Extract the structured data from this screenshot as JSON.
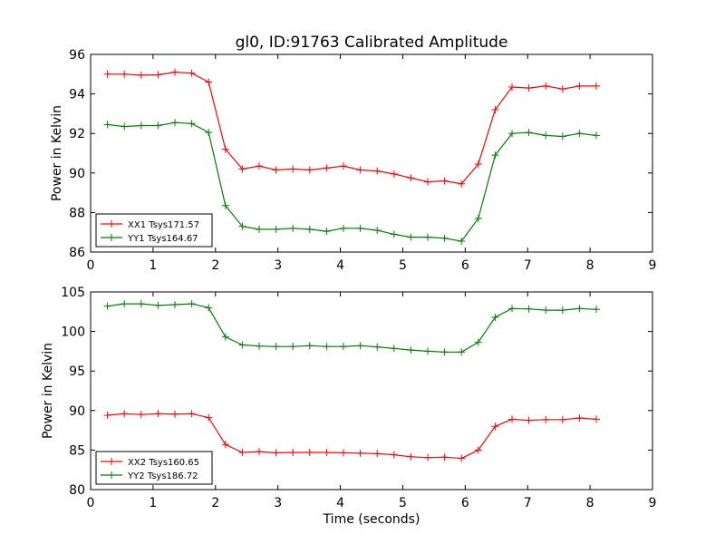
{
  "chart_data": [
    {
      "type": "line",
      "title": "gl0, ID:91763 Calibrated Amplitude",
      "xlabel": "",
      "ylabel": "Power in Kelvin",
      "xlim": [
        0,
        9
      ],
      "ylim": [
        86,
        96
      ],
      "xticks": [
        "0",
        "1",
        "2",
        "3",
        "4",
        "5",
        "6",
        "7",
        "8",
        "9"
      ],
      "yticks": [
        "86",
        "88",
        "90",
        "92",
        "94",
        "96"
      ],
      "legend_position": "lower-left",
      "x": [
        0.27,
        0.54,
        0.81,
        1.08,
        1.35,
        1.62,
        1.89,
        2.16,
        2.43,
        2.7,
        2.97,
        3.24,
        3.51,
        3.78,
        4.05,
        4.32,
        4.59,
        4.86,
        5.13,
        5.4,
        5.67,
        5.94,
        6.21,
        6.48,
        6.75,
        7.02,
        7.29,
        7.56,
        7.83,
        8.1
      ],
      "series": [
        {
          "name": "XX1 Tsys171.57",
          "color": "#ff0000",
          "values": [
            95.0,
            95.0,
            94.95,
            94.97,
            95.1,
            95.05,
            94.6,
            91.2,
            90.2,
            90.35,
            90.15,
            90.2,
            90.15,
            90.25,
            90.35,
            90.15,
            90.1,
            89.95,
            89.75,
            89.55,
            89.6,
            89.45,
            90.45,
            93.2,
            94.35,
            94.3,
            94.4,
            94.25,
            94.4,
            94.4
          ]
        },
        {
          "name": "YY1 Tsys164.67",
          "color": "#008000",
          "values": [
            92.45,
            92.35,
            92.4,
            92.4,
            92.55,
            92.5,
            92.05,
            88.35,
            87.3,
            87.15,
            87.15,
            87.2,
            87.15,
            87.05,
            87.2,
            87.2,
            87.1,
            86.9,
            86.75,
            86.75,
            86.7,
            86.55,
            87.7,
            90.9,
            92.0,
            92.05,
            91.9,
            91.85,
            92.0,
            91.9
          ]
        }
      ]
    },
    {
      "type": "line",
      "title": "",
      "xlabel": "Time (seconds)",
      "ylabel": "Power in Kelvin",
      "xlim": [
        0,
        9
      ],
      "ylim": [
        80,
        105
      ],
      "xticks": [
        "0",
        "1",
        "2",
        "3",
        "4",
        "5",
        "6",
        "7",
        "8",
        "9"
      ],
      "yticks": [
        "80",
        "85",
        "90",
        "95",
        "100",
        "105"
      ],
      "legend_position": "lower-left",
      "x": [
        0.27,
        0.54,
        0.81,
        1.08,
        1.35,
        1.62,
        1.89,
        2.16,
        2.43,
        2.7,
        2.97,
        3.24,
        3.51,
        3.78,
        4.05,
        4.32,
        4.59,
        4.86,
        5.13,
        5.4,
        5.67,
        5.94,
        6.21,
        6.48,
        6.75,
        7.02,
        7.29,
        7.56,
        7.83,
        8.1
      ],
      "series": [
        {
          "name": "XX2 Tsys160.65",
          "color": "#ff0000",
          "values": [
            89.4,
            89.6,
            89.5,
            89.6,
            89.55,
            89.6,
            89.1,
            85.7,
            84.7,
            84.8,
            84.65,
            84.7,
            84.7,
            84.7,
            84.65,
            84.6,
            84.55,
            84.4,
            84.15,
            84.05,
            84.1,
            83.95,
            85.0,
            88.0,
            88.9,
            88.75,
            88.85,
            88.85,
            89.05,
            88.9
          ]
        },
        {
          "name": "YY2 Tsys186.72",
          "color": "#008000",
          "values": [
            103.2,
            103.5,
            103.5,
            103.3,
            103.4,
            103.5,
            103.0,
            99.3,
            98.3,
            98.15,
            98.1,
            98.1,
            98.2,
            98.1,
            98.1,
            98.2,
            98.05,
            97.85,
            97.65,
            97.5,
            97.4,
            97.4,
            98.65,
            101.8,
            102.9,
            102.85,
            102.7,
            102.7,
            102.9,
            102.8
          ]
        }
      ]
    }
  ]
}
